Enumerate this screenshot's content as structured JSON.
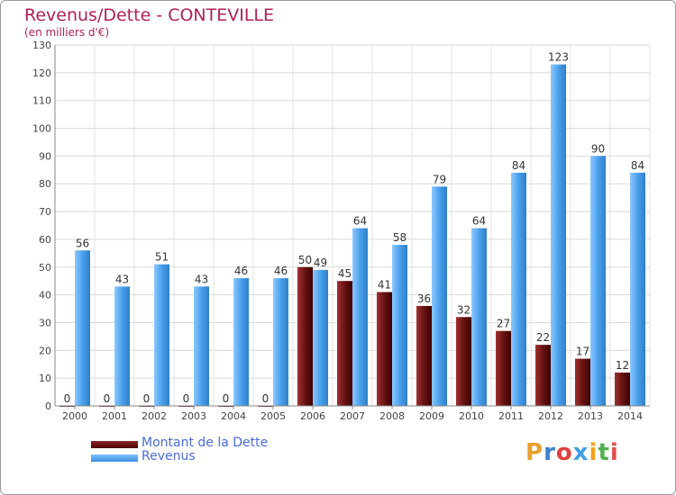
{
  "header": {
    "title": "Revenus/Dette - CONTEVILLE",
    "subtitle": "(en milliers d'€)"
  },
  "legend": {
    "items": [
      {
        "label": "Montant de la Dette",
        "color": "#6b1515"
      },
      {
        "label": "Revenus",
        "color": "#4aa0ec"
      }
    ]
  },
  "logo": {
    "text": "Proxiti",
    "colors": [
      "#e8a030",
      "#3a80d0",
      "#e04040",
      "#40a0e0",
      "#f0a020",
      "#50b050",
      "#e05050"
    ]
  },
  "chart_data": {
    "type": "bar",
    "title": "Revenus/Dette - CONTEVILLE",
    "subtitle": "(en milliers d'€)",
    "categories": [
      "2000",
      "2001",
      "2002",
      "2003",
      "2004",
      "2005",
      "2006",
      "2007",
      "2008",
      "2009",
      "2010",
      "2011",
      "2012",
      "2013",
      "2014"
    ],
    "series": [
      {
        "name": "Montant de la Dette",
        "color": "#6b1515",
        "values": [
          0,
          0,
          0,
          0,
          0,
          0,
          50,
          45,
          41,
          36,
          32,
          27,
          22,
          17,
          12
        ]
      },
      {
        "name": "Revenus",
        "color": "#4aa0ec",
        "values": [
          56,
          43,
          51,
          43,
          46,
          46,
          49,
          64,
          58,
          79,
          64,
          84,
          123,
          90,
          84
        ]
      }
    ],
    "ylim": [
      0,
      130
    ],
    "yticks": [
      0,
      10,
      20,
      30,
      40,
      50,
      60,
      70,
      80,
      90,
      100,
      110,
      120,
      130
    ],
    "grid": true,
    "legend_position": "bottom-left"
  }
}
